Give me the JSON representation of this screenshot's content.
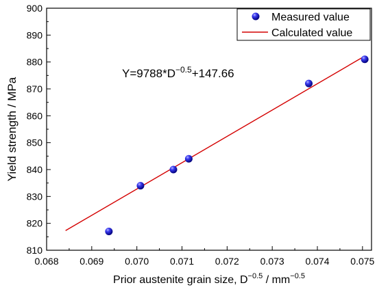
{
  "chart_data": {
    "type": "scatter",
    "xlabel": "Prior austenite grain size, D",
    "xlabel_sup1": "−0.5",
    "xlabel_mid": " / mm",
    "xlabel_sup2": "−0.5",
    "ylabel": "Yield strength / MPa",
    "xlim": [
      0.068,
      0.0752
    ],
    "ylim": [
      810,
      900
    ],
    "xticks": [
      0.068,
      0.069,
      0.07,
      0.071,
      0.072,
      0.073,
      0.074,
      0.075
    ],
    "xtick_labels": [
      "0.068",
      "0.069",
      "0.070",
      "0.071",
      "0.072",
      "0.073",
      "0.074",
      "0.075"
    ],
    "yticks": [
      810,
      820,
      830,
      840,
      850,
      860,
      870,
      880,
      890,
      900
    ],
    "ytick_labels": [
      "810",
      "820",
      "830",
      "840",
      "850",
      "860",
      "870",
      "880",
      "890",
      "900"
    ],
    "series": [
      {
        "name": "Measured value",
        "kind": "scatter",
        "color": "#1a1adc",
        "x": [
          0.06938,
          0.07008,
          0.07081,
          0.07115,
          0.07381,
          0.07505
        ],
        "y": [
          817,
          834,
          840,
          844,
          872,
          881
        ]
      },
      {
        "name": "Calculated value",
        "kind": "line",
        "color": "#d40000",
        "x": [
          0.06842,
          0.07505
        ],
        "y": [
          817.3,
          882.2
        ]
      }
    ],
    "annotation": {
      "prefix": "Y=9788*D",
      "sup": "−0.5",
      "suffix": "+147.66"
    },
    "legend_position": "top-right",
    "grid": false
  }
}
